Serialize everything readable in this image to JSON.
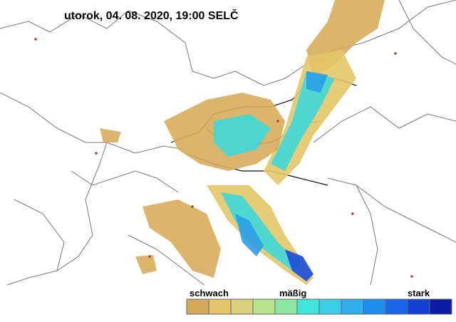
{
  "title": "utorok, 04. 08. 2020, 19:00 SELČ",
  "legend": {
    "labels": [
      "schwach",
      "mäßig",
      "stark"
    ],
    "colors": [
      "#d6aa5c",
      "#e4c466",
      "#d8d07c",
      "#b8e28c",
      "#8ee6a2",
      "#40e6dc",
      "#3ccfe8",
      "#2eaeec",
      "#1e8eee",
      "#1a66ea",
      "#1440d8",
      "#0c1aa8"
    ]
  }
}
